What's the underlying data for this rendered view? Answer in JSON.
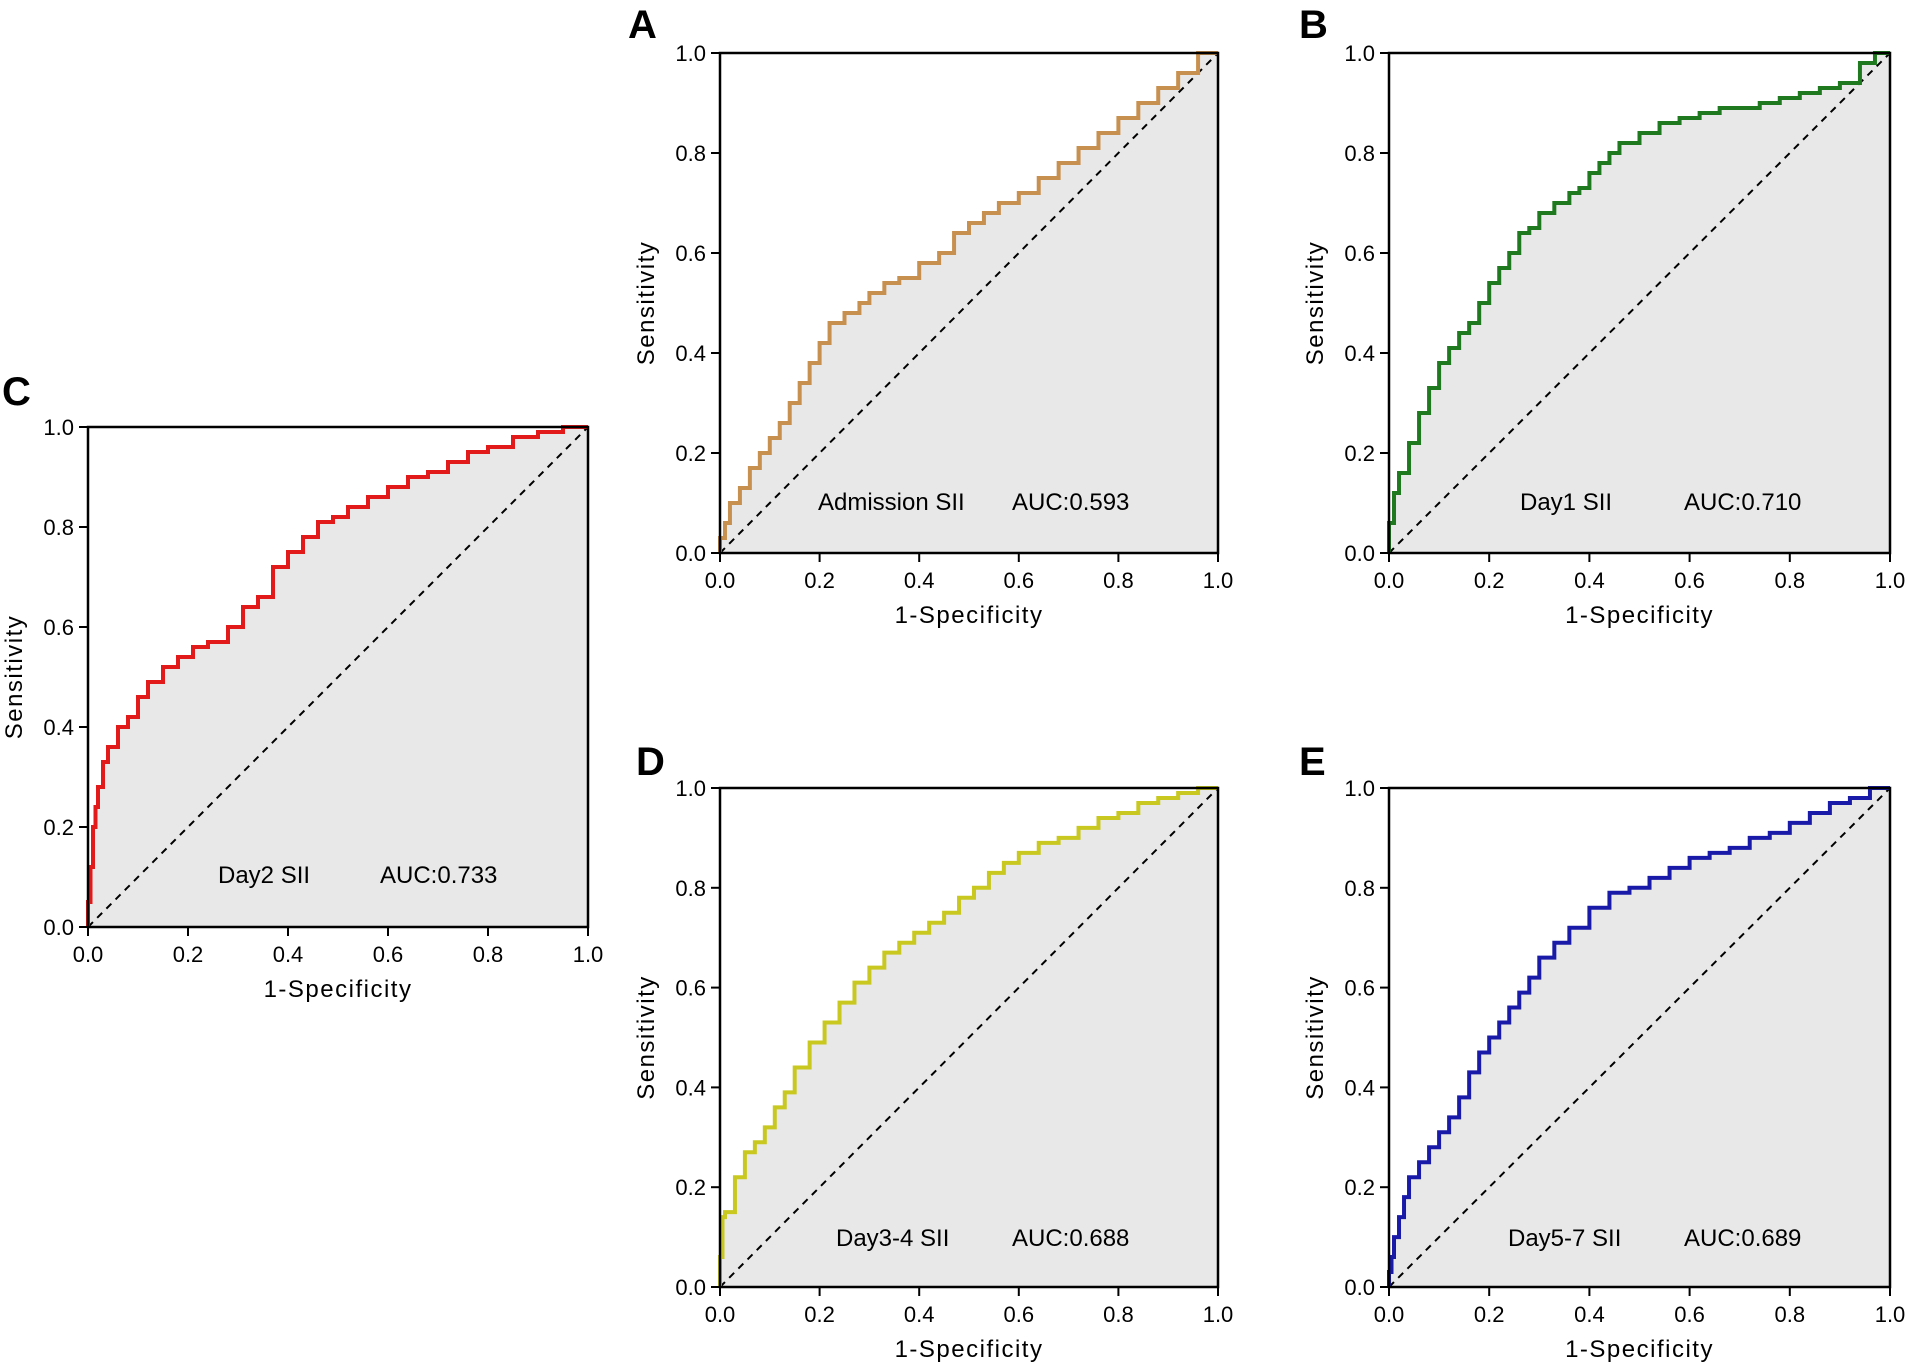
{
  "figure": {
    "background": "#ffffff",
    "plot_fill": "#e8e8e8"
  },
  "chart_data": [
    {
      "panel": "A",
      "type": "line",
      "xlabel": "1-Specificity",
      "ylabel": "Sensitivity",
      "xlim": [
        0,
        1
      ],
      "ylim": [
        0,
        1
      ],
      "xticks": [
        "0.0",
        "0.2",
        "0.4",
        "0.6",
        "0.8",
        "1.0"
      ],
      "yticks": [
        "0.0",
        "0.2",
        "0.4",
        "0.6",
        "0.8",
        "1.0"
      ],
      "series": [
        {
          "name": "Admission SII",
          "color": "#c8904f",
          "x": [
            0,
            0.01,
            0.02,
            0.04,
            0.06,
            0.08,
            0.1,
            0.12,
            0.14,
            0.16,
            0.18,
            0.2,
            0.22,
            0.25,
            0.28,
            0.3,
            0.33,
            0.36,
            0.4,
            0.44,
            0.47,
            0.5,
            0.53,
            0.56,
            0.6,
            0.64,
            0.68,
            0.72,
            0.76,
            0.8,
            0.84,
            0.88,
            0.92,
            0.96,
            1
          ],
          "y": [
            0,
            0.03,
            0.06,
            0.1,
            0.13,
            0.17,
            0.2,
            0.23,
            0.26,
            0.3,
            0.34,
            0.38,
            0.42,
            0.46,
            0.48,
            0.5,
            0.52,
            0.54,
            0.55,
            0.58,
            0.6,
            0.64,
            0.66,
            0.68,
            0.7,
            0.72,
            0.75,
            0.78,
            0.81,
            0.84,
            0.87,
            0.9,
            0.93,
            0.96,
            1
          ]
        }
      ],
      "annotations": [
        "Admission SII",
        "AUC:0.593"
      ]
    },
    {
      "panel": "B",
      "type": "line",
      "xlabel": "1-Specificity",
      "ylabel": "Sensitivity",
      "xlim": [
        0,
        1
      ],
      "ylim": [
        0,
        1
      ],
      "xticks": [
        "0.0",
        "0.2",
        "0.4",
        "0.6",
        "0.8",
        "1.0"
      ],
      "yticks": [
        "0.0",
        "0.2",
        "0.4",
        "0.6",
        "0.8",
        "1.0"
      ],
      "series": [
        {
          "name": "Day1 SII",
          "color": "#1f7a1f",
          "x": [
            0,
            0.01,
            0.02,
            0.04,
            0.06,
            0.08,
            0.1,
            0.12,
            0.14,
            0.16,
            0.18,
            0.2,
            0.22,
            0.24,
            0.26,
            0.28,
            0.3,
            0.33,
            0.36,
            0.38,
            0.4,
            0.42,
            0.44,
            0.46,
            0.5,
            0.54,
            0.58,
            0.62,
            0.66,
            0.7,
            0.74,
            0.78,
            0.82,
            0.86,
            0.9,
            0.94,
            0.97,
            1
          ],
          "y": [
            0,
            0.06,
            0.12,
            0.16,
            0.22,
            0.28,
            0.33,
            0.38,
            0.41,
            0.44,
            0.46,
            0.5,
            0.54,
            0.57,
            0.6,
            0.64,
            0.65,
            0.68,
            0.7,
            0.72,
            0.73,
            0.76,
            0.78,
            0.8,
            0.82,
            0.84,
            0.86,
            0.87,
            0.88,
            0.89,
            0.89,
            0.9,
            0.91,
            0.92,
            0.93,
            0.94,
            0.98,
            1
          ]
        }
      ],
      "annotations": [
        "Day1 SII",
        "AUC:0.710"
      ]
    },
    {
      "panel": "C",
      "type": "line",
      "xlabel": "1-Specificity",
      "ylabel": "Sensitivity",
      "xlim": [
        0,
        1
      ],
      "ylim": [
        0,
        1
      ],
      "xticks": [
        "0.0",
        "0.2",
        "0.4",
        "0.6",
        "0.8",
        "1.0"
      ],
      "yticks": [
        "0.0",
        "0.2",
        "0.4",
        "0.6",
        "0.8",
        "1.0"
      ],
      "series": [
        {
          "name": "Day2 SII",
          "color": "#e31a1a",
          "x": [
            0,
            0.005,
            0.01,
            0.015,
            0.02,
            0.03,
            0.04,
            0.06,
            0.08,
            0.1,
            0.12,
            0.15,
            0.18,
            0.21,
            0.24,
            0.28,
            0.31,
            0.34,
            0.37,
            0.4,
            0.43,
            0.46,
            0.49,
            0.52,
            0.56,
            0.6,
            0.64,
            0.68,
            0.72,
            0.76,
            0.8,
            0.85,
            0.9,
            0.95,
            1
          ],
          "y": [
            0,
            0.05,
            0.12,
            0.2,
            0.24,
            0.28,
            0.33,
            0.36,
            0.4,
            0.42,
            0.46,
            0.49,
            0.52,
            0.54,
            0.56,
            0.57,
            0.6,
            0.64,
            0.66,
            0.72,
            0.75,
            0.78,
            0.81,
            0.82,
            0.84,
            0.86,
            0.88,
            0.9,
            0.91,
            0.93,
            0.95,
            0.96,
            0.98,
            0.99,
            1
          ]
        }
      ],
      "annotations": [
        "Day2 SII",
        "AUC:0.733"
      ]
    },
    {
      "panel": "D",
      "type": "line",
      "xlabel": "1-Specificity",
      "ylabel": "Sensitivity",
      "xlim": [
        0,
        1
      ],
      "ylim": [
        0,
        1
      ],
      "xticks": [
        "0.0",
        "0.2",
        "0.4",
        "0.6",
        "0.8",
        "1.0"
      ],
      "yticks": [
        "0.0",
        "0.2",
        "0.4",
        "0.6",
        "0.8",
        "1.0"
      ],
      "series": [
        {
          "name": "Day3-4 SII",
          "color": "#c8c820",
          "x": [
            0,
            0.005,
            0.01,
            0.03,
            0.05,
            0.07,
            0.09,
            0.11,
            0.13,
            0.15,
            0.18,
            0.21,
            0.24,
            0.27,
            0.3,
            0.33,
            0.36,
            0.39,
            0.42,
            0.45,
            0.48,
            0.51,
            0.54,
            0.57,
            0.6,
            0.64,
            0.68,
            0.72,
            0.76,
            0.8,
            0.84,
            0.88,
            0.92,
            0.96,
            1
          ],
          "y": [
            0,
            0.06,
            0.14,
            0.15,
            0.22,
            0.27,
            0.29,
            0.32,
            0.36,
            0.39,
            0.44,
            0.49,
            0.53,
            0.57,
            0.61,
            0.64,
            0.67,
            0.69,
            0.71,
            0.73,
            0.75,
            0.78,
            0.8,
            0.83,
            0.85,
            0.87,
            0.89,
            0.9,
            0.92,
            0.94,
            0.95,
            0.97,
            0.98,
            0.99,
            1
          ]
        }
      ],
      "annotations": [
        "Day3-4 SII",
        "AUC:0.688"
      ]
    },
    {
      "panel": "E",
      "type": "line",
      "xlabel": "1-Specificity",
      "ylabel": "Sensitivity",
      "xlim": [
        0,
        1
      ],
      "ylim": [
        0,
        1
      ],
      "xticks": [
        "0.0",
        "0.2",
        "0.4",
        "0.6",
        "0.8",
        "1.0"
      ],
      "yticks": [
        "0.0",
        "0.2",
        "0.4",
        "0.6",
        "0.8",
        "1.0"
      ],
      "series": [
        {
          "name": "Day5-7 SII",
          "color": "#1a1aa8",
          "x": [
            0,
            0.005,
            0.01,
            0.02,
            0.03,
            0.04,
            0.06,
            0.08,
            0.1,
            0.12,
            0.14,
            0.16,
            0.18,
            0.2,
            0.22,
            0.24,
            0.26,
            0.28,
            0.3,
            0.33,
            0.36,
            0.4,
            0.44,
            0.48,
            0.52,
            0.56,
            0.6,
            0.64,
            0.68,
            0.72,
            0.76,
            0.8,
            0.84,
            0.88,
            0.92,
            0.96,
            1
          ],
          "y": [
            0,
            0.03,
            0.06,
            0.1,
            0.14,
            0.18,
            0.22,
            0.25,
            0.28,
            0.31,
            0.34,
            0.38,
            0.43,
            0.47,
            0.5,
            0.53,
            0.56,
            0.59,
            0.62,
            0.66,
            0.69,
            0.72,
            0.76,
            0.79,
            0.8,
            0.82,
            0.84,
            0.86,
            0.87,
            0.88,
            0.9,
            0.91,
            0.93,
            0.95,
            0.97,
            0.98,
            1
          ]
        }
      ],
      "annotations": [
        "Day5-7 SII",
        "AUC:0.689"
      ]
    }
  ]
}
